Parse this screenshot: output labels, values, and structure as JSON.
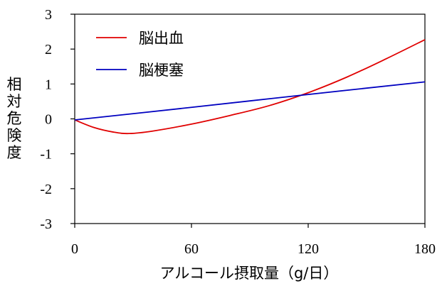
{
  "chart_data": {
    "type": "line",
    "title": "",
    "xlabel": "アルコール摂取量（g/日）",
    "ylabel": "相対危険度",
    "xlim": [
      0,
      180
    ],
    "ylim": [
      -3,
      3
    ],
    "xticks": [
      "0",
      "60",
      "120",
      "180"
    ],
    "yticks": [
      "3",
      "2",
      "1",
      "0",
      "-1",
      "-2",
      "-3"
    ],
    "legend_position": "top-left",
    "grid": false,
    "series": [
      {
        "name": "脳出血",
        "color": "#e00000",
        "x": [
          0,
          10,
          20,
          28,
          40,
          60,
          80,
          100,
          120,
          140,
          160,
          180
        ],
        "y": [
          -0.03,
          -0.25,
          -0.38,
          -0.42,
          -0.35,
          -0.15,
          0.1,
          0.38,
          0.75,
          1.2,
          1.72,
          2.27
        ]
      },
      {
        "name": "脳梗塞",
        "color": "#0000c0",
        "x": [
          0,
          60,
          120,
          180
        ],
        "y": [
          -0.03,
          0.33,
          0.7,
          1.06
        ]
      }
    ]
  }
}
